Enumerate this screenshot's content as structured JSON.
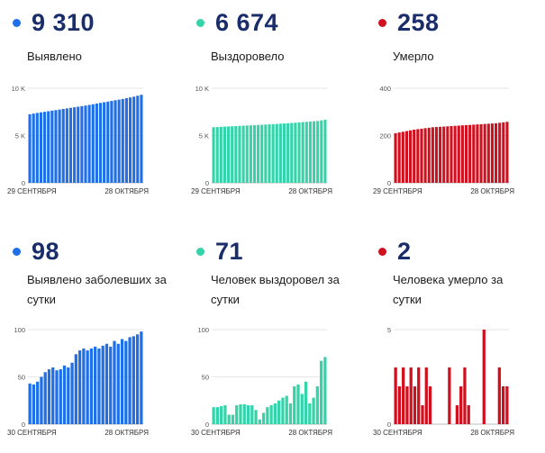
{
  "panels": [
    {
      "number": "9 310",
      "label": "Выявлено",
      "color": "#1f6fe8"
    },
    {
      "number": "6 674",
      "label": "Выздоровело",
      "color": "#35d3a9"
    },
    {
      "number": "258",
      "label": "Умерло",
      "color": "#d0101e"
    },
    {
      "number": "98",
      "label": "Выявлено заболевших за сутки",
      "color": "#1f6fe8"
    },
    {
      "number": "71",
      "label": "Человек выздоровел за сутки",
      "color": "#35d3a9"
    },
    {
      "number": "2",
      "label": "Человека умерло за сутки",
      "color": "#d0101e"
    }
  ],
  "chart_data": [
    {
      "type": "bar",
      "x_start_label": "29 СЕНТЯБРЯ",
      "x_end_label": "28 ОКТЯБРЯ",
      "yticks": [
        "10 K",
        "5 K",
        "0"
      ],
      "ytick_values": [
        10000,
        5000,
        0
      ],
      "ylim": [
        0,
        10000
      ],
      "values": [
        7250,
        7320,
        7390,
        7450,
        7510,
        7570,
        7630,
        7690,
        7750,
        7810,
        7870,
        7930,
        7990,
        8050,
        8110,
        8170,
        8240,
        8310,
        8380,
        8450,
        8520,
        8590,
        8660,
        8730,
        8800,
        8870,
        8950,
        9030,
        9110,
        9210,
        9310
      ]
    },
    {
      "type": "bar",
      "x_start_label": "29 СЕНТЯБРЯ",
      "x_end_label": "28 ОКТЯБРЯ",
      "yticks": [
        "10 K",
        "5 K",
        "0"
      ],
      "ytick_values": [
        10000,
        5000,
        0
      ],
      "ylim": [
        0,
        10000
      ],
      "values": [
        5880,
        5900,
        5920,
        5940,
        5960,
        5980,
        6000,
        6020,
        6040,
        6060,
        6080,
        6100,
        6120,
        6140,
        6160,
        6180,
        6200,
        6230,
        6250,
        6280,
        6300,
        6330,
        6360,
        6390,
        6420,
        6450,
        6480,
        6510,
        6540,
        6600,
        6674
      ]
    },
    {
      "type": "bar",
      "x_start_label": "29 СЕНТЯБРЯ",
      "x_end_label": "28 ОКТЯБРЯ",
      "yticks": [
        "400",
        "200",
        "0"
      ],
      "ytick_values": [
        400,
        200,
        0
      ],
      "ylim": [
        0,
        400
      ],
      "values": [
        210,
        213,
        216,
        219,
        222,
        225,
        227,
        229,
        231,
        233,
        235,
        236,
        237,
        238,
        239,
        240,
        241,
        242,
        243,
        244,
        245,
        246,
        247,
        248,
        249,
        250,
        251,
        252,
        254,
        256,
        258
      ]
    },
    {
      "type": "bar",
      "x_start_label": "30 СЕНТЯБРЯ",
      "x_end_label": "28 ОКТЯБРЯ",
      "yticks": [
        "100",
        "50",
        "0"
      ],
      "ytick_values": [
        100,
        50,
        0
      ],
      "ylim": [
        0,
        100
      ],
      "values": [
        43,
        42,
        45,
        50,
        55,
        58,
        60,
        57,
        58,
        62,
        60,
        65,
        74,
        78,
        80,
        78,
        80,
        82,
        80,
        83,
        85,
        82,
        88,
        85,
        90,
        88,
        92,
        93,
        95,
        98
      ]
    },
    {
      "type": "bar",
      "x_start_label": "30 СЕНТЯБРЯ",
      "x_end_label": "28 ОКТЯБРЯ",
      "yticks": [
        "100",
        "50",
        "0"
      ],
      "ytick_values": [
        100,
        50,
        0
      ],
      "ylim": [
        0,
        100
      ],
      "values": [
        18,
        18,
        19,
        20,
        10,
        10,
        20,
        21,
        21,
        20,
        20,
        15,
        5,
        12,
        18,
        20,
        22,
        25,
        28,
        30,
        22,
        40,
        42,
        32,
        45,
        22,
        28,
        40,
        67,
        71
      ]
    },
    {
      "type": "bar",
      "x_start_label": "30 СЕНТЯБРЯ",
      "x_end_label": "28 ОКТЯБРЯ",
      "yticks": [
        "5",
        "0"
      ],
      "ytick_values": [
        5,
        0
      ],
      "ylim": [
        0,
        5
      ],
      "values": [
        3,
        2,
        3,
        2,
        3,
        2,
        3,
        1,
        3,
        2,
        0,
        0,
        0,
        0,
        3,
        0,
        1,
        2,
        3,
        1,
        0,
        0,
        0,
        5,
        0,
        0,
        0,
        3,
        2,
        2
      ]
    }
  ]
}
